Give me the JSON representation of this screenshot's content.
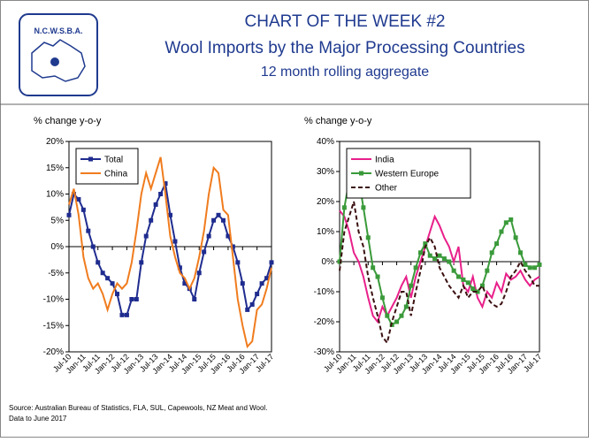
{
  "header": {
    "logo": "N.C.W.S.B.A.",
    "title": "CHART OF THE WEEK #2",
    "subtitle": "Wool Imports by the Major Processing Countries",
    "note": "12 month rolling aggregate"
  },
  "source": [
    "Source:  Australian Bureau of Statistics, FLA, SUL, Capewools, NZ Meat and Wool.",
    "Data to June 2017"
  ],
  "chart_data": [
    {
      "type": "line",
      "ylabel": "% change y-o-y",
      "legend": "upper left",
      "categories": [
        "Jul-10",
        null,
        null,
        "Jan-11",
        null,
        null,
        "Jul-11",
        null,
        null,
        "Jan-12",
        null,
        null,
        "Jul-12",
        null,
        null,
        "Jan-13",
        null,
        null,
        "Jul-13",
        null,
        null,
        "Jan-14",
        null,
        null,
        "Jul-14",
        null,
        null,
        "Jan-15",
        null,
        null,
        "Jul-15",
        null,
        null,
        "Jan-16",
        null,
        null,
        "Jul-16",
        null,
        null,
        "Jan-17",
        null,
        null,
        "Jul-17"
      ],
      "ylim": [
        -20,
        20
      ],
      "yticks": [
        {
          "value": -20,
          "label": "-20%"
        },
        {
          "value": -15,
          "label": "-15%"
        },
        {
          "value": -10,
          "label": "-10%"
        },
        {
          "value": -5,
          "label": "-5%"
        },
        {
          "value": 0,
          "label": "0%"
        },
        {
          "value": 5,
          "label": "5%"
        },
        {
          "value": 10,
          "label": "10%"
        },
        {
          "value": 15,
          "label": "15%"
        },
        {
          "value": 20,
          "label": "20%"
        }
      ],
      "series": [
        {
          "name": "Total",
          "color": "#1f2c8f",
          "marker": "square",
          "dash": false,
          "values": [
            6,
            10,
            9,
            7,
            3,
            0,
            -3,
            -5,
            -6,
            -7,
            -9,
            -13,
            -13,
            -10,
            -10,
            -3,
            2,
            5,
            8,
            10,
            12,
            6,
            1,
            -4,
            -7,
            -8,
            -10,
            -5,
            -1,
            2,
            5,
            6,
            5,
            2,
            0,
            -3,
            -7,
            -12,
            -11,
            -9,
            -7,
            -6,
            -3
          ]
        },
        {
          "name": "China",
          "color": "#f07c1e",
          "marker": "none",
          "dash": false,
          "values": [
            8,
            11,
            6,
            -2,
            -6,
            -8,
            -7,
            -9,
            -12,
            -9,
            -7,
            -8,
            -7,
            -3,
            3,
            10,
            14,
            11,
            14,
            17,
            10,
            2,
            -2,
            -5,
            -6,
            -8,
            -6,
            -2,
            3,
            10,
            15,
            14,
            7,
            6,
            -2,
            -10,
            -15,
            -19,
            -18,
            -12,
            -11,
            -8,
            -4
          ]
        }
      ]
    },
    {
      "type": "line",
      "ylabel": "% change y-o-y",
      "legend": "upper left",
      "categories": [
        "Jul-10",
        null,
        null,
        "Jan-11",
        null,
        null,
        "Jul-11",
        null,
        null,
        "Jan-12",
        null,
        null,
        "Jul-12",
        null,
        null,
        "Jan-13",
        null,
        null,
        "Jul-13",
        null,
        null,
        "Jan-14",
        null,
        null,
        "Jul-14",
        null,
        null,
        "Jan-15",
        null,
        null,
        "Jul-15",
        null,
        null,
        "Jan-16",
        null,
        null,
        "Jul-16",
        null,
        null,
        "Jan-17",
        null,
        null,
        "Jul-17"
      ],
      "ylim": [
        -30,
        40
      ],
      "yticks": [
        {
          "value": -30,
          "label": "-30%"
        },
        {
          "value": -20,
          "label": "-20%"
        },
        {
          "value": -10,
          "label": "-10%"
        },
        {
          "value": 0,
          "label": "0%"
        },
        {
          "value": 10,
          "label": "10%"
        },
        {
          "value": 20,
          "label": "20%"
        },
        {
          "value": 30,
          "label": "30%"
        },
        {
          "value": 40,
          "label": "40%"
        }
      ],
      "series": [
        {
          "name": "India",
          "color": "#e8208a",
          "marker": "none",
          "dash": false,
          "values": [
            17,
            15,
            10,
            3,
            0,
            -5,
            -12,
            -18,
            -20,
            -15,
            -18,
            -15,
            -12,
            -8,
            -5,
            -12,
            -5,
            0,
            5,
            10,
            15,
            12,
            8,
            5,
            0,
            5,
            -8,
            -10,
            -5,
            -12,
            -15,
            -10,
            -12,
            -7,
            -10,
            -4,
            -6,
            -5,
            -3,
            -6,
            -8,
            -6,
            -5
          ]
        },
        {
          "name": "Western Europe",
          "color": "#3a9a3a",
          "marker": "square",
          "dash": false,
          "values": [
            0,
            18,
            27,
            32,
            28,
            18,
            8,
            -2,
            -5,
            -12,
            -18,
            -21,
            -20,
            -18,
            -15,
            -8,
            -2,
            3,
            6,
            2,
            1,
            2,
            1,
            0,
            -3,
            -5,
            -6,
            -7,
            -9,
            -10,
            -8,
            -3,
            3,
            6,
            10,
            13,
            14,
            8,
            3,
            -1,
            -2,
            -2,
            -1
          ]
        },
        {
          "name": "Other",
          "color": "#3b1010",
          "marker": "none",
          "dash": true,
          "values": [
            -3,
            10,
            15,
            20,
            10,
            5,
            -5,
            -12,
            -18,
            -25,
            -27,
            -20,
            -15,
            -10,
            -10,
            -18,
            -10,
            -3,
            5,
            8,
            5,
            -2,
            -5,
            -8,
            -10,
            -12,
            -8,
            -12,
            -10,
            -10,
            -8,
            -12,
            -14,
            -15,
            -14,
            -10,
            -5,
            -3,
            0,
            -3,
            -5,
            -8,
            -8
          ]
        }
      ]
    }
  ]
}
